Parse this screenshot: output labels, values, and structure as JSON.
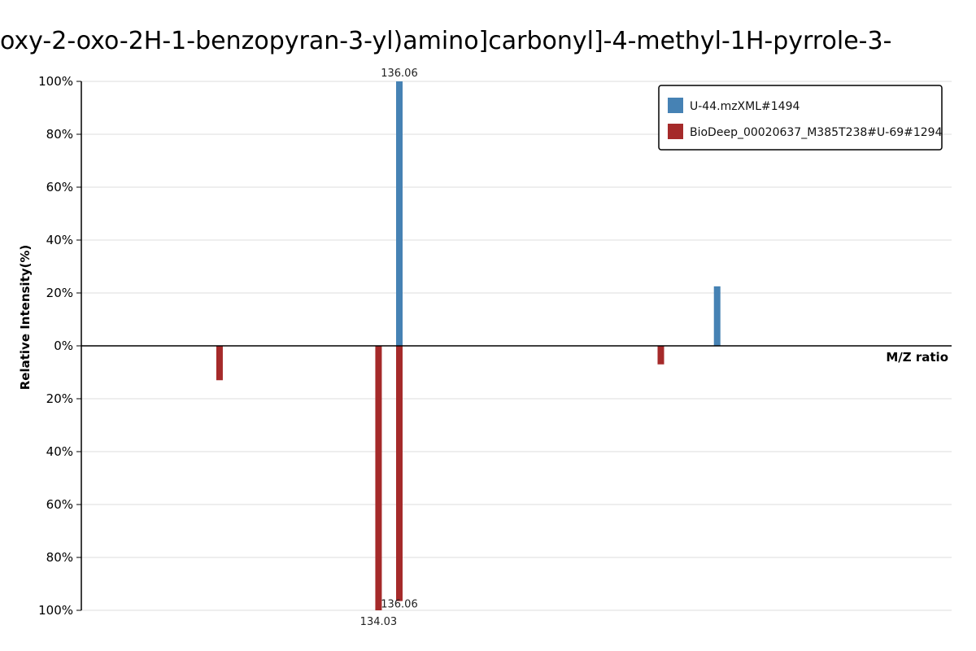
{
  "chart_data": {
    "type": "bar",
    "title": "oxy-2-oxo-2H-1-benzopyran-3-yl)amino]carbonyl]-4-methyl-1H-pyrrole-3-",
    "xlabel": "M/Z ratio",
    "ylabel": "Relative Intensity(%)",
    "ylim": [
      -100,
      100
    ],
    "yticks": [
      {
        "value": 100,
        "label": "100%"
      },
      {
        "value": 80,
        "label": "80%"
      },
      {
        "value": 60,
        "label": "60%"
      },
      {
        "value": 40,
        "label": "40%"
      },
      {
        "value": 20,
        "label": "20%"
      },
      {
        "value": 0,
        "label": "0%"
      },
      {
        "value": -20,
        "label": "20%"
      },
      {
        "value": -40,
        "label": "40%"
      },
      {
        "value": -60,
        "label": "60%"
      },
      {
        "value": -80,
        "label": "80%"
      },
      {
        "value": -100,
        "label": "100%"
      }
    ],
    "xlim": [
      105,
      190
    ],
    "grid": true,
    "legend_position": "top-right",
    "series": [
      {
        "name": "U-44.mzXML#1494",
        "color": "#4682b4",
        "direction": "up",
        "peaks": [
          {
            "mz": 136.06,
            "intensity": 100,
            "label": "136.06"
          },
          {
            "mz": 167.1,
            "intensity": 22.5,
            "label": ""
          }
        ]
      },
      {
        "name": "BioDeep_00020637_M385T238#U-69#1294",
        "color": "#a52a2a",
        "direction": "down",
        "peaks": [
          {
            "mz": 118.5,
            "intensity": 13,
            "label": ""
          },
          {
            "mz": 134.03,
            "intensity": 100,
            "label": "134.03"
          },
          {
            "mz": 136.06,
            "intensity": 96.5,
            "label": "136.06"
          },
          {
            "mz": 161.6,
            "intensity": 7,
            "label": ""
          }
        ]
      }
    ]
  }
}
